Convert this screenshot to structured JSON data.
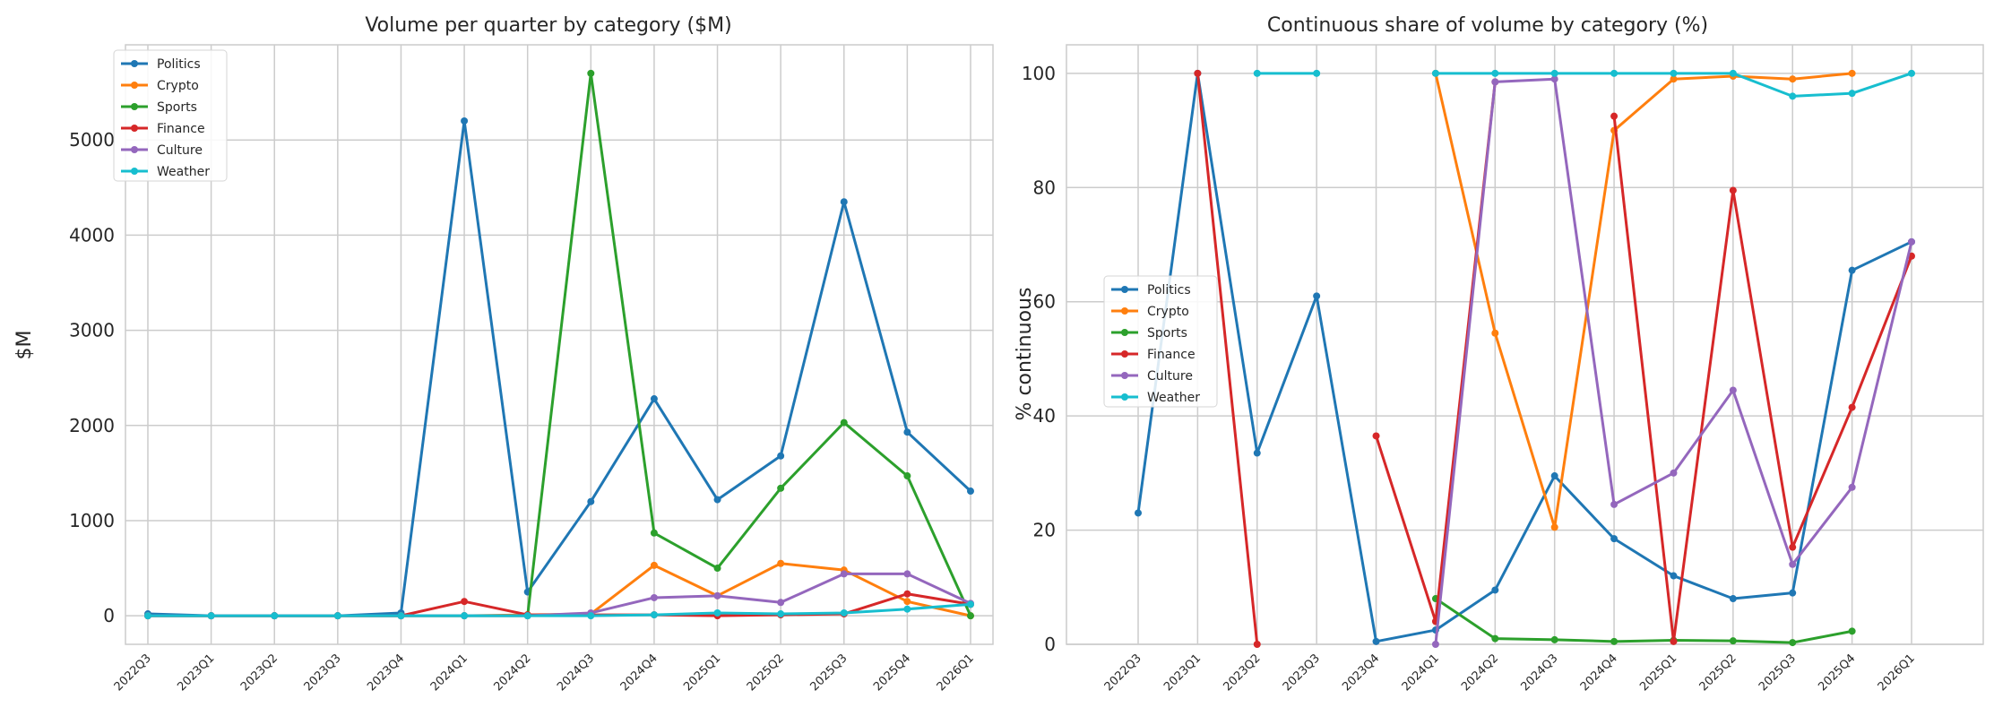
{
  "chart_data": [
    {
      "type": "line",
      "title": "Volume per quarter by category ($M)",
      "xlabel": "",
      "ylabel": "$M",
      "ylim": [
        -300,
        6000
      ],
      "yticks": [
        0,
        1000,
        2000,
        3000,
        4000,
        5000
      ],
      "grid": true,
      "legend_position": "top-left",
      "categories": [
        "2022Q3",
        "2023Q1",
        "2023Q2",
        "2023Q3",
        "2023Q4",
        "2024Q1",
        "2024Q2",
        "2024Q3",
        "2024Q4",
        "2025Q1",
        "2025Q2",
        "2025Q3",
        "2025Q4",
        "2026Q1"
      ],
      "series": [
        {
          "name": "Politics",
          "color": "#1f77b4",
          "values": [
            20,
            0,
            0,
            0,
            30,
            5200,
            250,
            1200,
            2280,
            1220,
            1680,
            4350,
            1930,
            1310
          ]
        },
        {
          "name": "Crypto",
          "color": "#ff7f0e",
          "values": [
            0,
            0,
            0,
            0,
            0,
            0,
            10,
            20,
            530,
            210,
            550,
            480,
            150,
            0
          ]
        },
        {
          "name": "Sports",
          "color": "#2ca02c",
          "values": [
            0,
            0,
            0,
            0,
            0,
            0,
            0,
            5700,
            870,
            500,
            1340,
            2030,
            1470,
            0
          ]
        },
        {
          "name": "Finance",
          "color": "#d62728",
          "values": [
            0,
            0,
            0,
            0,
            0,
            150,
            10,
            10,
            10,
            0,
            10,
            20,
            230,
            120
          ]
        },
        {
          "name": "Culture",
          "color": "#9467bd",
          "values": [
            0,
            0,
            0,
            0,
            0,
            0,
            0,
            30,
            190,
            210,
            140,
            440,
            440,
            130
          ]
        },
        {
          "name": "Weather",
          "color": "#17becf",
          "values": [
            0,
            0,
            0,
            0,
            0,
            0,
            0,
            0,
            10,
            30,
            20,
            30,
            70,
            120
          ]
        }
      ]
    },
    {
      "type": "line",
      "title": "Continuous share of volume by category (%)",
      "xlabel": "",
      "ylabel": "% continuous",
      "ylim": [
        0,
        105
      ],
      "yticks": [
        0,
        20,
        40,
        60,
        80,
        100
      ],
      "grid": true,
      "legend_position": "center-left",
      "categories": [
        "2022Q3",
        "2023Q1",
        "2023Q2",
        "2023Q3",
        "2023Q4",
        "2024Q1",
        "2024Q2",
        "2024Q3",
        "2024Q4",
        "2025Q1",
        "2025Q2",
        "2025Q3",
        "2025Q4",
        "2026Q1"
      ],
      "series": [
        {
          "name": "Politics",
          "color": "#1f77b4",
          "values": [
            23,
            100,
            33.5,
            61,
            0.5,
            2.5,
            9.5,
            29.5,
            18.5,
            12,
            8,
            9,
            65.5,
            70.5
          ]
        },
        {
          "name": "Crypto",
          "color": "#ff7f0e",
          "values": [
            null,
            null,
            null,
            null,
            null,
            100,
            54.5,
            20.5,
            90,
            99,
            99.5,
            99,
            100,
            null
          ]
        },
        {
          "name": "Sports",
          "color": "#2ca02c",
          "values": [
            null,
            null,
            null,
            null,
            null,
            8,
            1,
            0.8,
            0.5,
            0.7,
            0.6,
            0.3,
            2.3,
            null
          ]
        },
        {
          "name": "Finance",
          "color": "#d62728",
          "values": [
            null,
            100,
            0,
            null,
            36.5,
            4,
            98.5,
            null,
            92.5,
            0.5,
            79.5,
            17,
            41.5,
            68
          ]
        },
        {
          "name": "Culture",
          "color": "#9467bd",
          "values": [
            null,
            null,
            null,
            null,
            null,
            0,
            98.5,
            99,
            24.5,
            30,
            44.5,
            14,
            27.5,
            70.5
          ]
        },
        {
          "name": "Weather",
          "color": "#17becf",
          "values": [
            null,
            null,
            100,
            100,
            null,
            100,
            100,
            100,
            100,
            100,
            100,
            96,
            96.5,
            100
          ]
        }
      ]
    }
  ]
}
